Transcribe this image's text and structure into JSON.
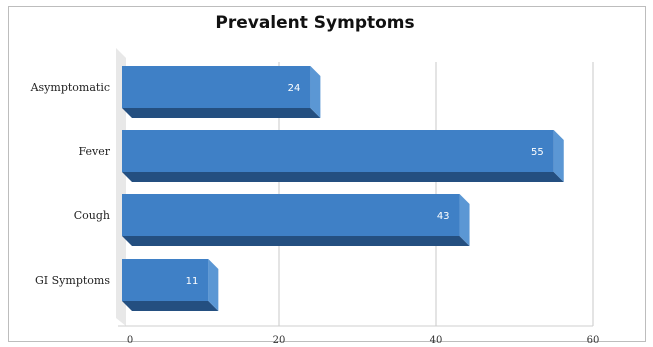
{
  "chart_data": {
    "type": "bar",
    "orientation": "horizontal",
    "title": "Prevalent Symptoms",
    "categories": [
      "Asymptomatic",
      "Fever",
      "Cough",
      "GI Symptoms"
    ],
    "values": [
      24,
      55,
      43,
      11
    ],
    "data_labels": [
      "24",
      "55",
      "43",
      "11"
    ],
    "xlim": [
      0,
      60
    ],
    "x_ticks": [
      0,
      20,
      40,
      60
    ],
    "x_tick_labels": [
      "0",
      "20",
      "40",
      "60"
    ],
    "grid": true,
    "legend": "none",
    "style": "3d",
    "colors": {
      "bar_front": "#3f80c6",
      "bar_side": "#5b97d4",
      "bar_bottom": "#244f80",
      "grid": "#c8c8c8",
      "depth_wall": "#e8e8e8"
    }
  }
}
